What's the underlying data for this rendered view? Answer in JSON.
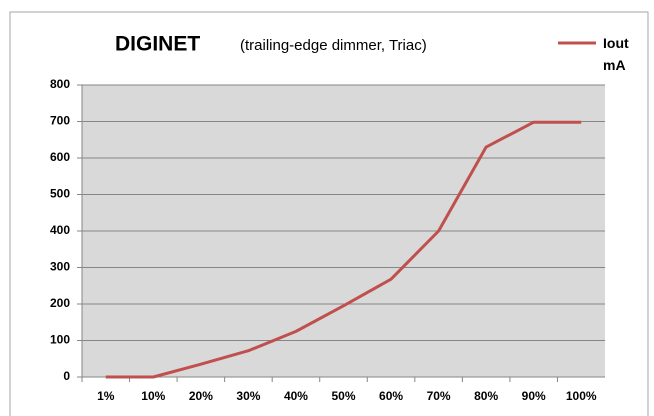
{
  "chart_data": {
    "type": "line",
    "title": "DIGINET",
    "subtitle": "(trailing-edge dimmer, Triac)",
    "categories": [
      "1%",
      "10%",
      "20%",
      "30%",
      "40%",
      "50%",
      "60%",
      "70%",
      "80%",
      "90%",
      "100%"
    ],
    "series": [
      {
        "name": "Iout mA",
        "color": "#c0504d",
        "values": [
          0,
          0,
          35,
          72,
          125,
          195,
          268,
          400,
          630,
          698,
          698
        ]
      }
    ],
    "ylim": [
      0,
      800
    ],
    "yticks": [
      0,
      100,
      200,
      300,
      400,
      500,
      600,
      700,
      800
    ],
    "grid": true,
    "legend": "top-right"
  }
}
